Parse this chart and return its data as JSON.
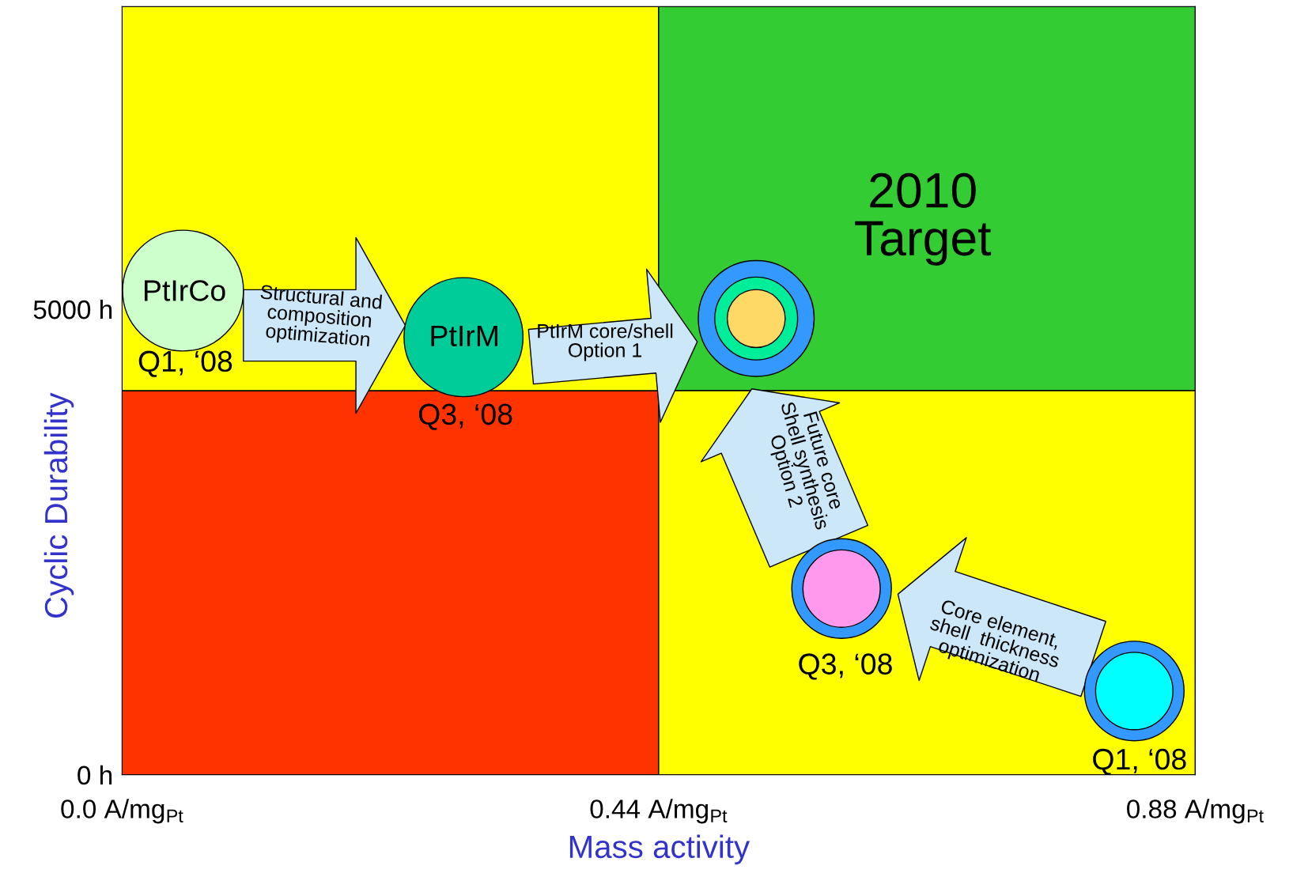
{
  "chart_data": {
    "type": "bubble",
    "xlabel": "Mass activity",
    "ylabel": "Cyclic Durability",
    "xlim": [
      0,
      0.88
    ],
    "xticks": [
      {
        "value": 0,
        "label": "0.0 A/mg$_{Pt}$"
      },
      {
        "value": 0.44,
        "label": "0.44 A/mg$_{Pt}$"
      },
      {
        "value": 0.88,
        "label": "0.88 A/mg$_{Pt}$"
      }
    ],
    "ylim": [
      0,
      8250
    ],
    "yticks": [
      {
        "value": 0,
        "label": "0 h"
      },
      {
        "value": 5000,
        "label": "5000 h"
      }
    ],
    "series": [
      {
        "color": "#3399ff",
        "x": [
          0.52,
          0.59,
          0.83
        ],
        "values": [
          4900,
          2000,
          900
        ],
        "sizes": [
          0.92,
          0.68,
          0.68
        ]
      },
      {
        "color": "#00ee99",
        "x": [
          0.52
        ],
        "values": [
          4900
        ],
        "sizes": [
          0.47
        ]
      },
      {
        "colors": [
          "#ffd966",
          "#ff99ee",
          "#00ffff"
        ],
        "x": [
          0.52,
          0.59,
          0.83
        ],
        "values": [
          4900,
          2000,
          900
        ],
        "sizes": [
          0.23,
          0.41,
          0.41
        ]
      },
      {
        "colors": [
          "#ccffcc",
          "#00cc99"
        ],
        "x": [
          0.05,
          0.28
        ],
        "values": [
          5200,
          4700
        ],
        "sizes": [
          1,
          0.97
        ]
      }
    ],
    "annotations": [
      "PtIrCo",
      "PtIrM",
      "Q1, ‘08",
      "Q3, ‘08",
      "Q3, ‘08",
      "Q1, ‘08",
      "2010\nTarget",
      "Structural and\ncomposition\noptimization",
      "PtIrM core/shell\nOption 1",
      "Future core\nShell synthesis\nOption 2",
      "Core element,\nshell  thickness\noptimization"
    ],
    "grid": false,
    "legend": false
  }
}
